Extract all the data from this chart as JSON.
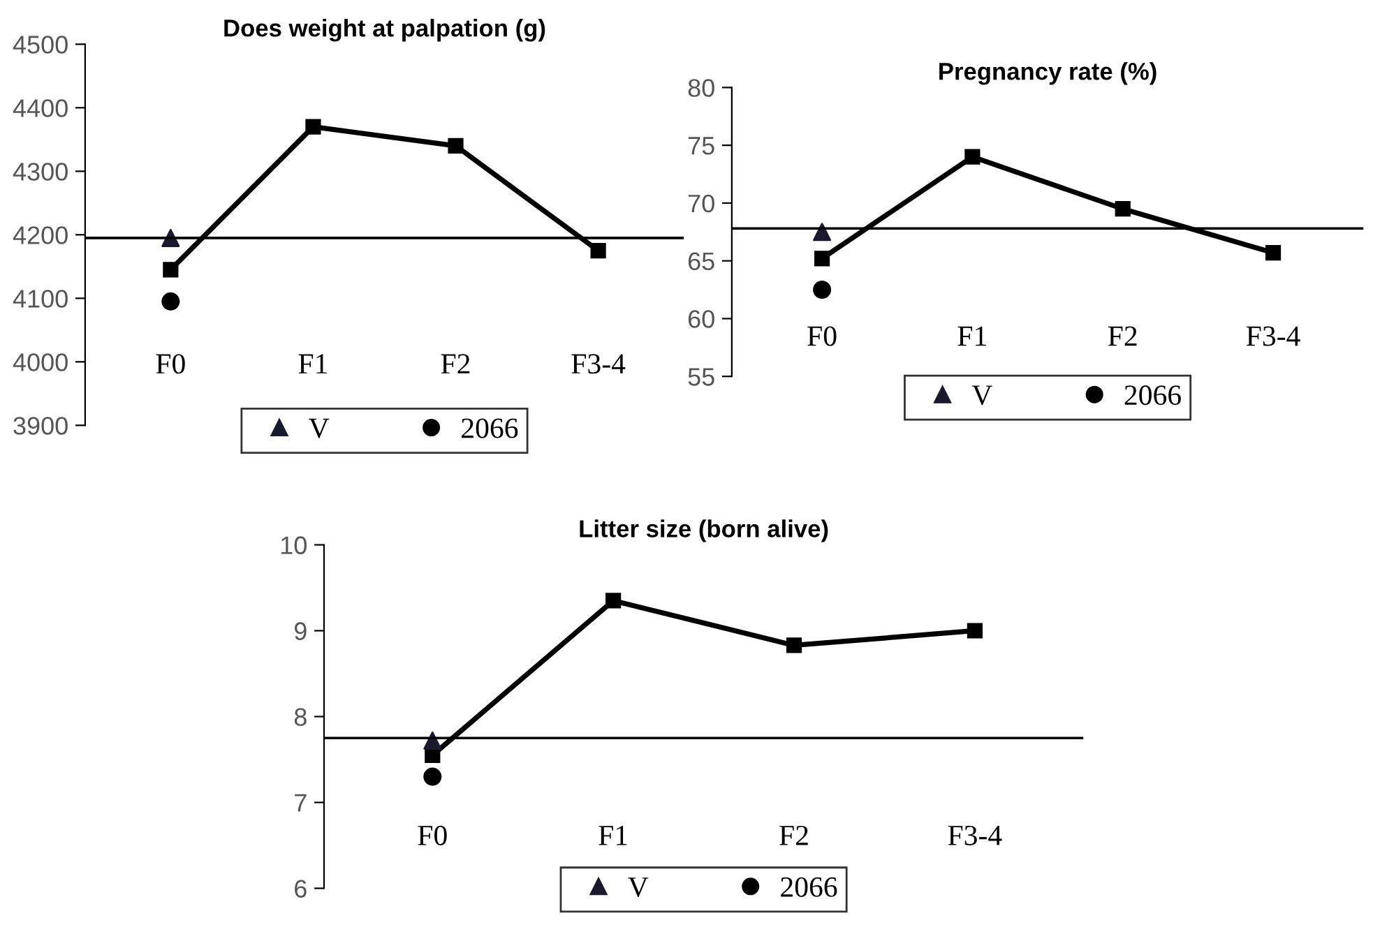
{
  "chart_data": [
    {
      "type": "line",
      "title": "Does weight at palpation (g)",
      "categories": [
        "F0",
        "F1",
        "F2",
        "F3-4"
      ],
      "ylim": [
        3900,
        4500
      ],
      "yticks": [
        3900,
        4000,
        4100,
        4200,
        4300,
        4400,
        4500
      ],
      "legend": "bottom",
      "series": [
        {
          "color": "#000000",
          "marker": "square",
          "values": [
            4145,
            4370,
            4340,
            4175
          ]
        },
        {
          "name": "V",
          "type": "scatter",
          "color": "#1a1a2e",
          "marker": "triangle",
          "values": [
            4195,
            null,
            null,
            null
          ]
        },
        {
          "name": "2066",
          "type": "scatter",
          "color": "#000000",
          "marker": "circle",
          "values": [
            4095,
            null,
            null,
            null
          ]
        }
      ],
      "ref_lines": [
        {
          "axis": "y",
          "value": 4195,
          "color": "#000000"
        }
      ]
    },
    {
      "type": "line",
      "title": "Pregnancy rate (%)",
      "categories": [
        "F0",
        "F1",
        "F2",
        "F3-4"
      ],
      "ylim": [
        55,
        80
      ],
      "yticks": [
        55,
        60,
        65,
        70,
        75,
        80
      ],
      "legend": "bottom",
      "series": [
        {
          "color": "#000000",
          "marker": "square",
          "values": [
            65.2,
            74,
            69.5,
            65.7
          ]
        },
        {
          "name": "V",
          "type": "scatter",
          "color": "#1a1a2e",
          "marker": "triangle",
          "values": [
            67.5,
            null,
            null,
            null
          ]
        },
        {
          "name": "2066",
          "type": "scatter",
          "color": "#000000",
          "marker": "circle",
          "values": [
            62.5,
            null,
            null,
            null
          ]
        }
      ],
      "ref_lines": [
        {
          "axis": "y",
          "value": 67.8,
          "color": "#000000"
        }
      ]
    },
    {
      "type": "line",
      "title": "Litter size (born alive)",
      "categories": [
        "F0",
        "F1",
        "F2",
        "F3-4"
      ],
      "ylim": [
        6,
        10
      ],
      "yticks": [
        6,
        7,
        8,
        9,
        10
      ],
      "legend": "bottom",
      "series": [
        {
          "color": "#000000",
          "marker": "square",
          "values": [
            7.55,
            9.35,
            8.83,
            9.0
          ]
        },
        {
          "name": "V",
          "type": "scatter",
          "color": "#1a1a2e",
          "marker": "triangle",
          "values": [
            7.72,
            null,
            null,
            null
          ]
        },
        {
          "name": "2066",
          "type": "scatter",
          "color": "#000000",
          "marker": "circle",
          "values": [
            7.3,
            null,
            null,
            null
          ]
        }
      ],
      "ref_lines": [
        {
          "axis": "y",
          "value": 7.75,
          "color": "#000000"
        }
      ]
    }
  ]
}
